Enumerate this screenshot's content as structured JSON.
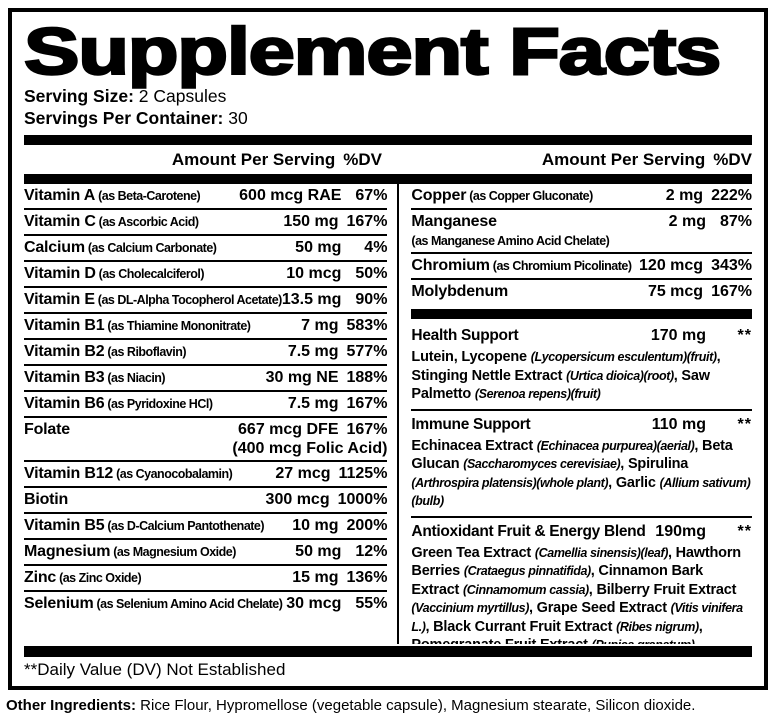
{
  "title": "Supplement Facts",
  "serving": {
    "size_label": "Serving Size:",
    "size_value": "2 Capsules",
    "container_label": "Servings Per Container:",
    "container_value": "30"
  },
  "column_header": {
    "amount": "Amount Per Serving",
    "dv": "%DV"
  },
  "left_column": {
    "rows": [
      {
        "name": "Vitamin A",
        "form": "(as Beta-Carotene)",
        "amount": "600 mcg RAE",
        "dv": "67%"
      },
      {
        "name": "Vitamin C",
        "form": "(as Ascorbic Acid)",
        "amount": "150 mg",
        "dv": "167%"
      },
      {
        "name": "Calcium",
        "form": "(as Calcium Carbonate)",
        "amount": "50 mg",
        "dv": "4%"
      },
      {
        "name": "Vitamin D",
        "form": "(as Cholecalciferol)",
        "amount": "10 mcg",
        "dv": "50%"
      },
      {
        "name": "Vitamin E",
        "form": "(as DL-Alpha Tocopherol Acetate)",
        "amount": "13.5 mg",
        "dv": "90%"
      },
      {
        "name": "Vitamin B1",
        "form": "(as Thiamine Mononitrate)",
        "amount": "7 mg",
        "dv": "583%"
      },
      {
        "name": "Vitamin B2",
        "form": "(as Riboflavin)",
        "amount": "7.5 mg",
        "dv": "577%"
      },
      {
        "name": "Vitamin B3",
        "form": "(as Niacin)",
        "amount": "30 mg NE",
        "dv": "188%"
      },
      {
        "name": "Vitamin B6",
        "form": "(as Pyridoxine HCl)",
        "amount": "7.5 mg",
        "dv": "167%"
      },
      {
        "name": "Folate",
        "form": "",
        "amount": "667 mcg DFE",
        "dv": "167%",
        "sub_right": "(400 mcg Folic Acid)"
      },
      {
        "name": "Vitamin B12",
        "form": "(as Cyanocobalamin)",
        "amount": "27 mcg",
        "dv": "1125%"
      },
      {
        "name": "Biotin",
        "form": "",
        "amount": "300 mcg",
        "dv": "1000%"
      },
      {
        "name": "Vitamin B5",
        "form": "(as D-Calcium Pantothenate)",
        "amount": "10 mg",
        "dv": "200%"
      },
      {
        "name": "Magnesium",
        "form": "(as Magnesium Oxide)",
        "amount": "50 mg",
        "dv": "12%"
      },
      {
        "name": "Zinc",
        "form": "(as Zinc Oxide)",
        "amount": "15 mg",
        "dv": "136%"
      },
      {
        "name": "Selenium",
        "form": "(as Selenium Amino Acid Chelate)",
        "amount": "30 mcg",
        "dv": "55%"
      }
    ]
  },
  "right_column": {
    "rows": [
      {
        "name": "Copper",
        "form": "(as Copper Gluconate)",
        "amount": "2 mg",
        "dv": "222%"
      },
      {
        "name": "Manganese",
        "form": "",
        "amount": "2 mg",
        "dv": "87%",
        "sub_left": "(as Manganese Amino Acid Chelate)"
      },
      {
        "name": "Chromium",
        "form": "(as Chromium Picolinate)",
        "amount": "120 mcg",
        "dv": "343%"
      },
      {
        "name": "Molybdenum",
        "form": "",
        "amount": "75 mcg",
        "dv": "167%"
      }
    ],
    "blends": [
      {
        "name": "Health Support",
        "amount": "170 mg",
        "dv": "**",
        "desc": [
          {
            "t": "Lutein, Lycopene ",
            "i": false
          },
          {
            "t": "(Lycopersicum esculentum)(fruit)",
            "i": true
          },
          {
            "t": ", Stinging Nettle Extract ",
            "i": false
          },
          {
            "t": "(Urtica dioica)(root)",
            "i": true
          },
          {
            "t": ", Saw Palmetto ",
            "i": false
          },
          {
            "t": "(Serenoa repens)(fruit)",
            "i": true
          }
        ]
      },
      {
        "name": "Immune Support",
        "amount": "110 mg",
        "dv": "**",
        "desc": [
          {
            "t": "Echinacea Extract ",
            "i": false
          },
          {
            "t": "(Echinacea purpurea)(aerial)",
            "i": true
          },
          {
            "t": ", Beta Glucan ",
            "i": false
          },
          {
            "t": "(Saccharomyces cerevisiae)",
            "i": true
          },
          {
            "t": ", Spirulina ",
            "i": false
          },
          {
            "t": "(Arthrospira platensis)(whole plant)",
            "i": true
          },
          {
            "t": ", Garlic ",
            "i": false
          },
          {
            "t": "(Allium sativum)(bulb)",
            "i": true
          }
        ]
      },
      {
        "name": "Antioxidant Fruit & Energy Blend",
        "amount": "190mg",
        "dv": "**",
        "desc": [
          {
            "t": "Green Tea Extract ",
            "i": false
          },
          {
            "t": "(Camellia sinensis)(leaf)",
            "i": true
          },
          {
            "t": ", Hawthorn Berries ",
            "i": false
          },
          {
            "t": "(Crataegus pinnatifida)",
            "i": true
          },
          {
            "t": ", Cinnamon Bark Extract ",
            "i": false
          },
          {
            "t": "(Cinnamomum cassia)",
            "i": true
          },
          {
            "t": ", Bilberry Fruit Extract ",
            "i": false
          },
          {
            "t": "(Vaccinium myrtillus)",
            "i": true
          },
          {
            "t": ", Grape Seed Extract ",
            "i": false
          },
          {
            "t": "(Vitis vinifera L.)",
            "i": true
          },
          {
            "t": ", Black Currant Fruit Extract ",
            "i": false
          },
          {
            "t": "(Ribes nigrum)",
            "i": true
          },
          {
            "t": ", Pomegranate Fruit Extract ",
            "i": false
          },
          {
            "t": "(Punica granatum)",
            "i": true
          }
        ]
      }
    ]
  },
  "footnote": "**Daily Value (DV) Not Established",
  "other_ingredients": {
    "label": "Other Ingredients:",
    "text": " Rice Flour, Hypromellose (vegetable capsule), Magnesium stearate, Silicon dioxide."
  },
  "colors": {
    "ink": "#000000",
    "paper": "#ffffff"
  }
}
